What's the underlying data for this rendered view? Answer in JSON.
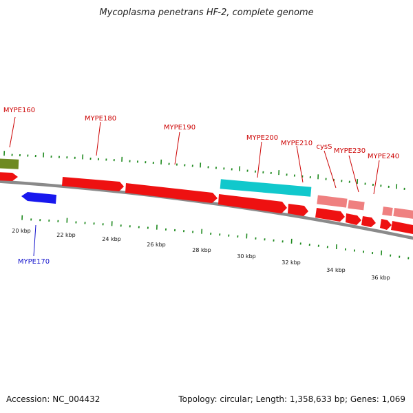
{
  "title": "Mycoplasma penetrans HF-2, complete genome",
  "footer": {
    "accession": "Accession: NC_004432",
    "stats": "Topology: circular; Length: 1,358,633 bp; Genes: 1,069"
  },
  "colors": {
    "forward_cds": "#ee1111",
    "highlight_cyan": "#11c8cc",
    "highlight_olive": "#6e8a22",
    "pink_cds": "#ef8080",
    "reverse_cds": "#1818ee",
    "tick_green": "#1f8a1f",
    "backbone": "#888888",
    "label_red": "#cc0000",
    "label_blue": "#1010cc"
  },
  "tick_labels": [
    "20 kbp",
    "22 kbp",
    "24 kbp",
    "26 kbp",
    "28 kbp",
    "30 kbp",
    "32 kbp",
    "34 kbp",
    "36 kbp"
  ],
  "gene_labels": [
    {
      "text": "MYPE160",
      "color": "#cc0000"
    },
    {
      "text": "MYPE170",
      "color": "#1010cc"
    },
    {
      "text": "MYPE180",
      "color": "#cc0000"
    },
    {
      "text": "MYPE190",
      "color": "#cc0000"
    },
    {
      "text": "MYPE200",
      "color": "#cc0000"
    },
    {
      "text": "MYPE210",
      "color": "#cc0000"
    },
    {
      "text": "cysS",
      "color": "#cc0000"
    },
    {
      "text": "MYPE230",
      "color": "#cc0000"
    },
    {
      "text": "MYPE240",
      "color": "#cc0000"
    }
  ]
}
